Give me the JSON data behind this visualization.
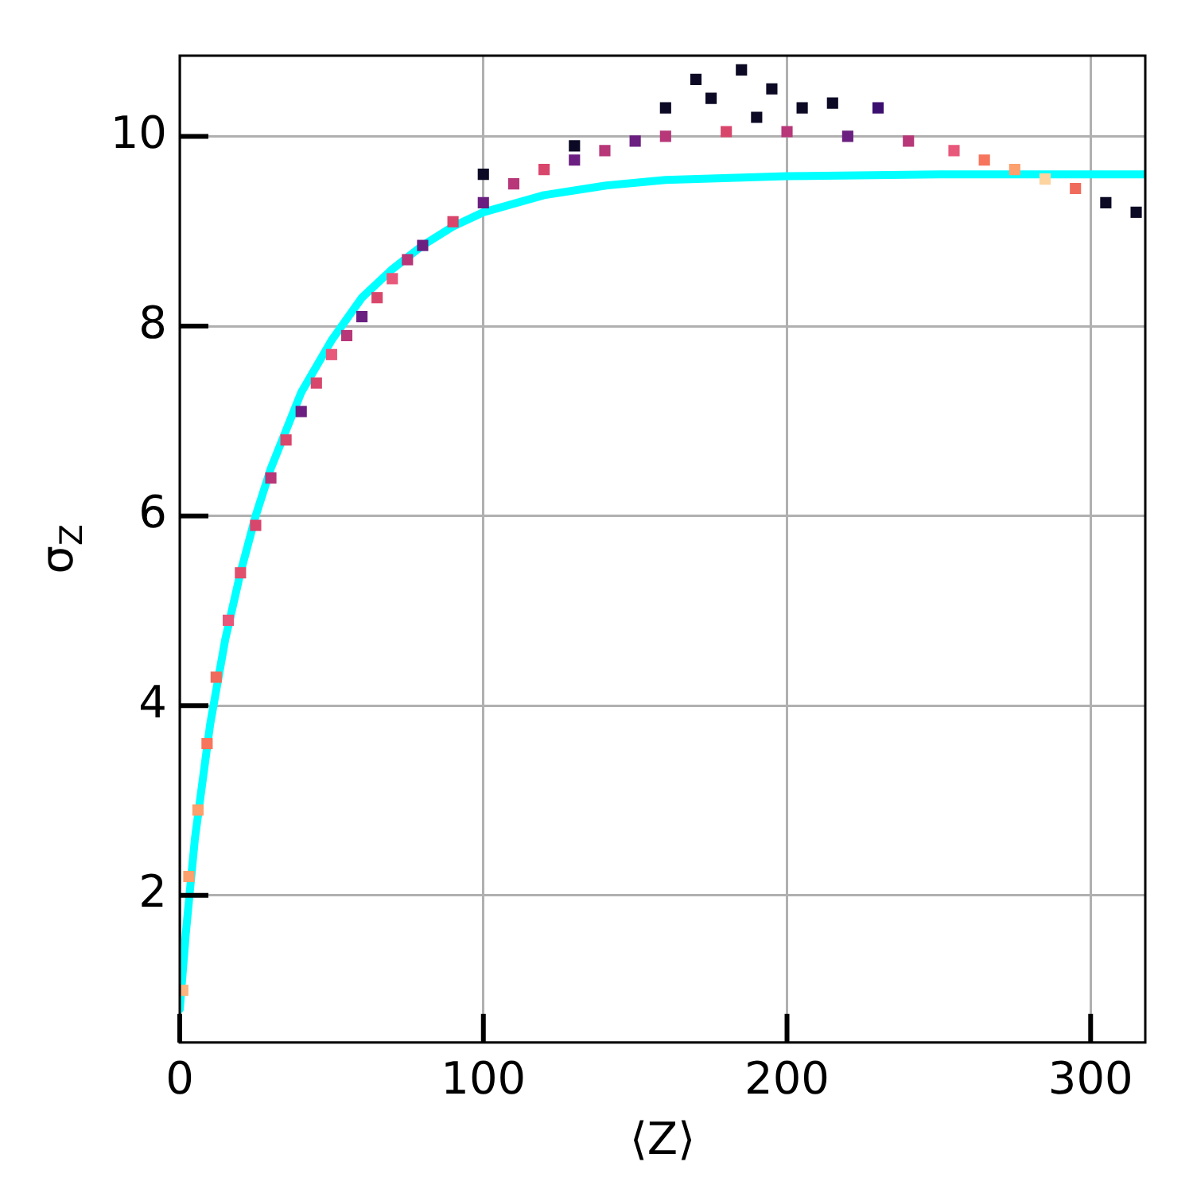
{
  "chart_data": {
    "type": "scatter",
    "xlabel": "⟨Z⟩",
    "ylabel": "σ$_{Z}$",
    "xlim": [
      0,
      318
    ],
    "ylim": [
      0.45,
      10.85
    ],
    "xticks": [
      0,
      100,
      200,
      300
    ],
    "yticks": [
      2,
      4,
      6,
      8,
      10
    ],
    "grid": true,
    "legend": false,
    "series": [
      {
        "type": "scatter",
        "marker": "square",
        "x": [
          1,
          3,
          6,
          9,
          12,
          16,
          20,
          25,
          30,
          35,
          40,
          45,
          50,
          55,
          60,
          65,
          70,
          75,
          80,
          90,
          100,
          110,
          120,
          130,
          140,
          150,
          160,
          180,
          200,
          220,
          240,
          255,
          265,
          275,
          285,
          295,
          305,
          315,
          160,
          170,
          175,
          185,
          195,
          205,
          215,
          230,
          190,
          100,
          130
        ],
        "values": [
          1.0,
          2.2,
          2.9,
          3.6,
          4.3,
          4.9,
          5.4,
          5.9,
          6.4,
          6.8,
          7.1,
          7.4,
          7.7,
          7.9,
          8.1,
          8.3,
          8.5,
          8.7,
          8.85,
          9.1,
          9.3,
          9.5,
          9.65,
          9.75,
          9.85,
          9.95,
          10.0,
          10.05,
          10.05,
          10.0,
          9.95,
          9.85,
          9.75,
          9.65,
          9.55,
          9.45,
          9.3,
          9.2,
          10.3,
          10.6,
          10.4,
          10.7,
          10.5,
          10.3,
          10.35,
          10.3,
          10.2,
          9.6,
          9.9
        ],
        "colors": [
          "#fcb57e",
          "#fca06e",
          "#fca06e",
          "#f7755c",
          "#f06b5c",
          "#e8587a",
          "#e04f6c",
          "#d9466b",
          "#b73779",
          "#d9466b",
          "#6b1f80",
          "#d9466b",
          "#e8587a",
          "#b73779",
          "#6b1f80",
          "#d9466b",
          "#e8587a",
          "#b73779",
          "#6b1f80",
          "#d9466b",
          "#6b1f80",
          "#b73779",
          "#d9466b",
          "#6b1f80",
          "#b73779",
          "#6b1f80",
          "#b73779",
          "#d9466b",
          "#b73779",
          "#6b1f80",
          "#b73779",
          "#e8587a",
          "#f7755c",
          "#fca06e",
          "#fcd4a0",
          "#f06b5c",
          "#0b0924",
          "#0b0924",
          "#0b0924",
          "#0b0924",
          "#0b0924",
          "#0b0924",
          "#0b0924",
          "#0b0924",
          "#0b0924",
          "#3b0f6f",
          "#0b0924",
          "#0b0924",
          "#0b0924"
        ]
      },
      {
        "type": "line",
        "color": "#00ffff",
        "x": [
          0,
          2,
          5,
          10,
          15,
          20,
          25,
          30,
          40,
          50,
          60,
          70,
          80,
          90,
          100,
          120,
          140,
          160,
          200,
          250,
          318
        ],
        "values": [
          0.8,
          1.6,
          2.6,
          3.8,
          4.7,
          5.4,
          6.0,
          6.5,
          7.3,
          7.85,
          8.3,
          8.6,
          8.85,
          9.05,
          9.2,
          9.38,
          9.48,
          9.54,
          9.58,
          9.6,
          9.6
        ]
      }
    ]
  }
}
